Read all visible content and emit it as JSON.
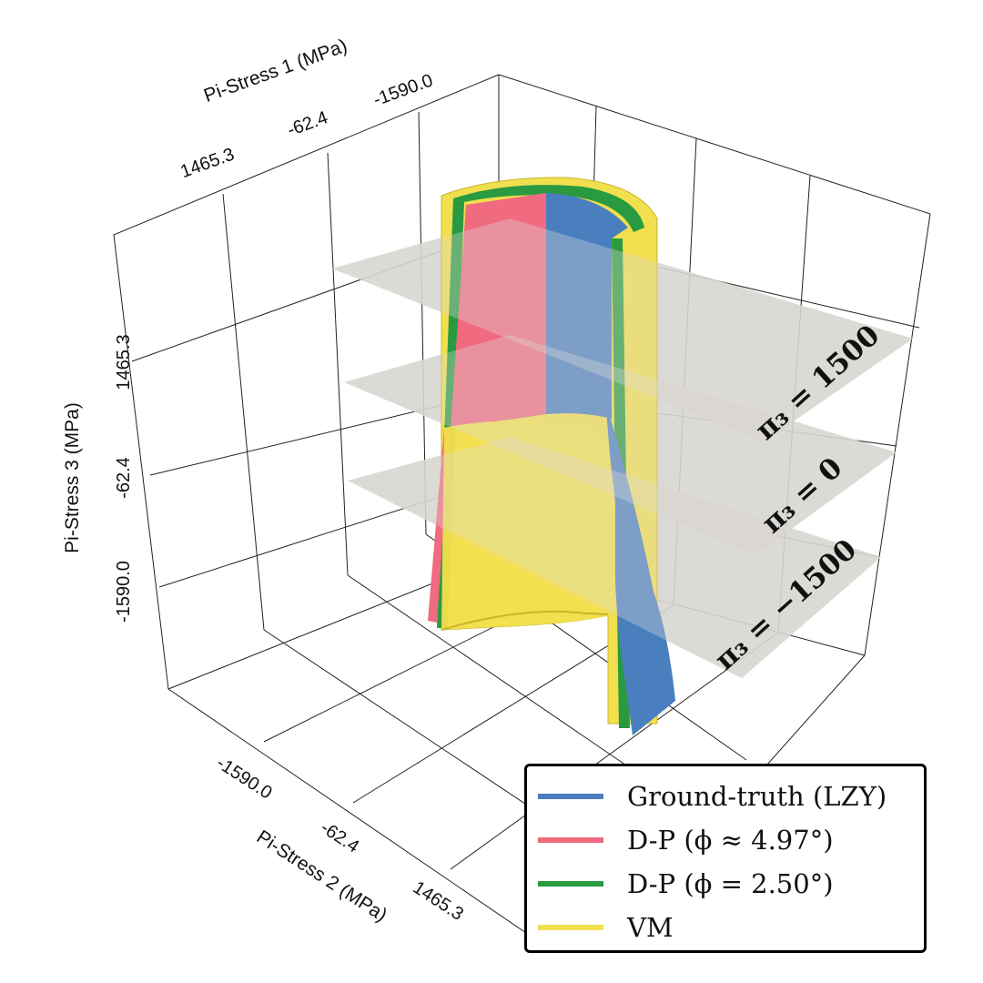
{
  "chart_data": {
    "type": "3d-surface",
    "axes": {
      "x": {
        "label": "Pi-Stress 1 (MPa)",
        "ticks": [
          "1465.3",
          "-62.4",
          "-1590.0"
        ]
      },
      "y": {
        "label": "Pi-Stress 2 (MPa)",
        "ticks": [
          "-1590.0",
          "-62.4",
          "1465.3"
        ]
      },
      "z": {
        "label": "Pi-Stress 3 (MPa)",
        "ticks": [
          "-1590.0",
          "-62.4",
          "1465.3"
        ]
      }
    },
    "planes": [
      {
        "label": "π₃ = 1500",
        "value": 1500
      },
      {
        "label": "π₃ = 0",
        "value": 0
      },
      {
        "label": "π₃ = −1500",
        "value": -1500
      }
    ],
    "series": [
      {
        "name": "Ground-truth (LZY)",
        "color": "#4a7fbf"
      },
      {
        "name": "D-P (ϕ ≈ 4.97°)",
        "color": "#f06a80"
      },
      {
        "name": "D-P (ϕ = 2.50°)",
        "color": "#2a9a40"
      },
      {
        "name": "VM",
        "color": "#f2df4e"
      }
    ],
    "grid": true,
    "legend_position": "bottom-right"
  }
}
